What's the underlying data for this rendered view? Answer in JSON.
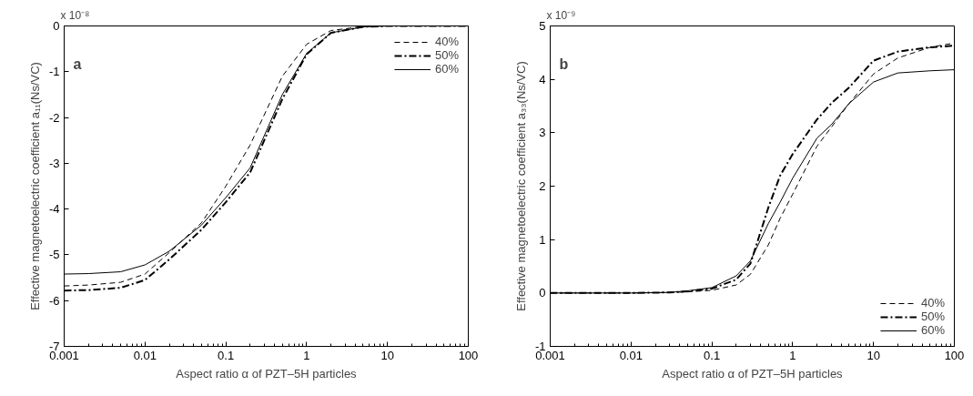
{
  "chart_data": [
    {
      "type": "line",
      "xlabel": "Aspect ratio α of PZT–5H particles",
      "ylabel": "Effective magnetoelectric coefficient a₁₁(Ns/VC)",
      "annotations": [
        "a",
        "x 10⁻⁸"
      ],
      "log": "x",
      "xlim": [
        0.001,
        100
      ],
      "xticks": [
        0.001,
        0.01,
        0.1,
        1,
        10,
        100
      ],
      "ylim": [
        -7,
        0
      ],
      "yticks": [
        -7,
        -6,
        -5,
        -4,
        -3,
        -2,
        -1,
        0
      ],
      "grid": false,
      "legend": "top right",
      "x": [
        0.001,
        0.002,
        0.005,
        0.01,
        0.02,
        0.05,
        0.1,
        0.2,
        0.5,
        1,
        2,
        5,
        10,
        100
      ],
      "series": [
        {
          "name": "40%",
          "color": "#000000",
          "line_style": "dashed",
          "values": [
            -5.68,
            -5.66,
            -5.6,
            -5.42,
            -4.95,
            -4.3,
            -3.5,
            -2.6,
            -1.1,
            -0.4,
            -0.1,
            -0.01,
            0,
            0
          ]
        },
        {
          "name": "50%",
          "color": "#000000",
          "line_style": "dashdot",
          "values": [
            -5.78,
            -5.77,
            -5.72,
            -5.55,
            -5.1,
            -4.45,
            -3.85,
            -3.2,
            -1.6,
            -0.62,
            -0.15,
            -0.02,
            0,
            0
          ]
        },
        {
          "name": "60%",
          "color": "#000000",
          "line_style": "solid",
          "values": [
            -5.42,
            -5.41,
            -5.37,
            -5.22,
            -4.92,
            -4.35,
            -3.75,
            -3.1,
            -1.5,
            -0.6,
            -0.15,
            -0.02,
            0,
            0
          ]
        }
      ]
    },
    {
      "type": "line",
      "xlabel": "Aspect ratio α of PZT–5H particles",
      "ylabel": "Effective magnetoelectric coefficient a₃₃(Ns/VC)",
      "annotations": [
        "b",
        "x 10⁻⁹"
      ],
      "log": "x",
      "xlim": [
        0.001,
        100
      ],
      "xticks": [
        0.001,
        0.01,
        0.1,
        1,
        10,
        100
      ],
      "ylim": [
        -1,
        5
      ],
      "yticks": [
        -1,
        0,
        1,
        2,
        3,
        4,
        5
      ],
      "grid": false,
      "legend": "bottom right",
      "x": [
        0.001,
        0.01,
        0.03,
        0.05,
        0.1,
        0.2,
        0.3,
        0.5,
        0.7,
        1,
        2,
        3,
        5,
        10,
        20,
        50,
        100
      ],
      "series": [
        {
          "name": "40%",
          "color": "#000000",
          "line_style": "dashed",
          "values": [
            0,
            0,
            0.01,
            0.02,
            0.05,
            0.15,
            0.35,
            0.9,
            1.4,
            1.85,
            2.75,
            3.1,
            3.55,
            4.1,
            4.4,
            4.6,
            4.68
          ]
        },
        {
          "name": "50%",
          "color": "#000000",
          "line_style": "dashdot",
          "values": [
            0,
            0,
            0.01,
            0.03,
            0.08,
            0.25,
            0.55,
            1.6,
            2.2,
            2.6,
            3.25,
            3.55,
            3.85,
            4.35,
            4.52,
            4.6,
            4.63
          ]
        },
        {
          "name": "60%",
          "color": "#000000",
          "line_style": "solid",
          "values": [
            0,
            0,
            0.01,
            0.04,
            0.1,
            0.32,
            0.6,
            1.3,
            1.7,
            2.15,
            2.9,
            3.15,
            3.55,
            3.95,
            4.12,
            4.16,
            4.18
          ]
        }
      ]
    }
  ]
}
